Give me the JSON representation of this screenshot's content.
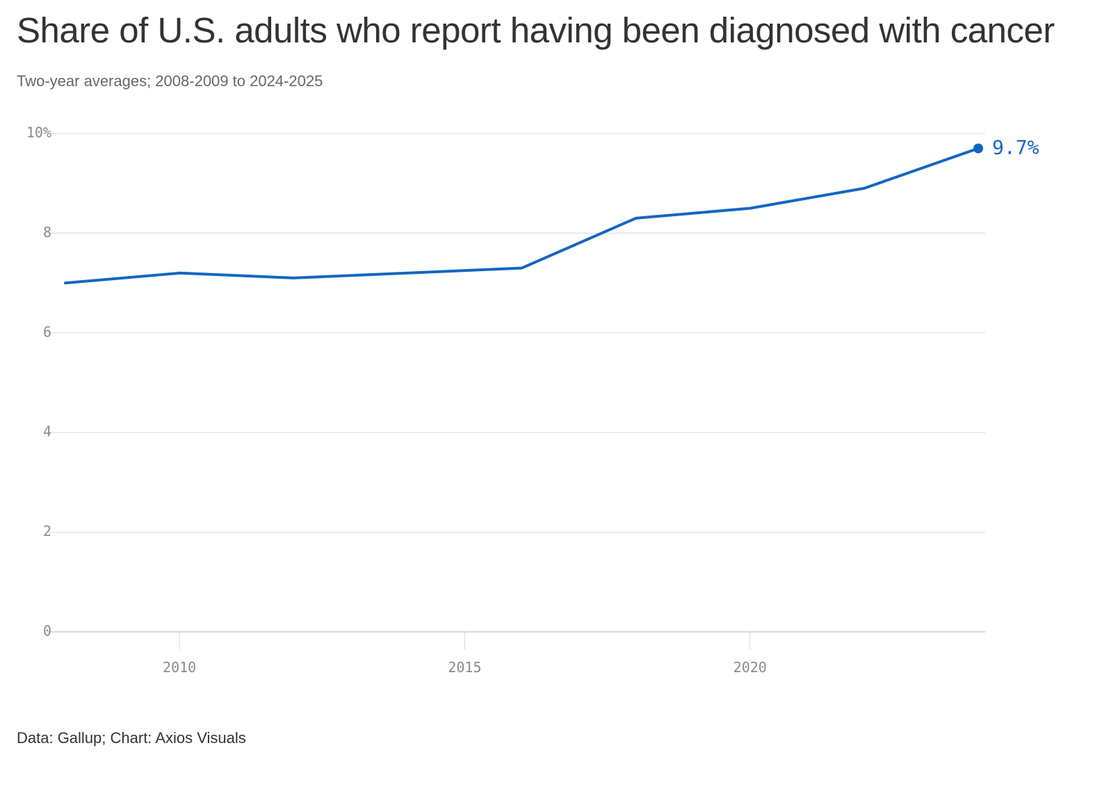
{
  "title": "Share of U.S. adults who report having been diagnosed with cancer",
  "subtitle": "Two-year averages; 2008-2009 to 2024-2025",
  "source": "Data: Gallup; Chart: Axios Visuals",
  "colors": {
    "line": "#1366c1",
    "grid": "#d9d9d9",
    "axis_text": "#8a8a8a"
  },
  "chart_data": {
    "type": "line",
    "title": "Share of U.S. adults who report having been diagnosed with cancer",
    "xlabel": "",
    "ylabel": "",
    "xlim": [
      2008,
      2024
    ],
    "ylim": [
      0,
      10
    ],
    "grid": true,
    "x_ticks": [
      2010,
      2015,
      2020
    ],
    "x_tick_labels": [
      "2010",
      "2015",
      "2020"
    ],
    "y_ticks": [
      0,
      2,
      4,
      6,
      8,
      10
    ],
    "y_tick_labels": [
      "0",
      "2",
      "4",
      "6",
      "8",
      "10%"
    ],
    "series": [
      {
        "name": "Diagnosed with cancer",
        "x": [
          2008,
          2010,
          2012,
          2016,
          2018,
          2020,
          2022,
          2024
        ],
        "values": [
          7.0,
          7.2,
          7.1,
          7.3,
          8.3,
          8.5,
          8.9,
          9.7
        ]
      }
    ],
    "end_label": "9.7%"
  }
}
